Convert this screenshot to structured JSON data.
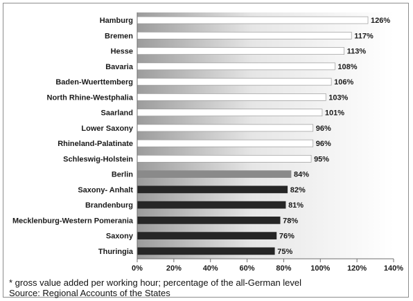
{
  "chart_data": {
    "type": "bar",
    "orientation": "horizontal",
    "categories": [
      "Hamburg",
      "Bremen",
      "Hesse",
      "Bavaria",
      "Baden-Wuerttemberg",
      "North Rhine-Westphalia",
      "Saarland",
      "Lower Saxony",
      "Rhineland-Palatinate",
      "Schleswig-Holstein",
      "Berlin",
      "Saxony- Anhalt",
      "Brandenburg",
      "Mecklenburg-Western Pomerania",
      "Saxony",
      "Thuringia"
    ],
    "values": [
      126,
      117,
      113,
      108,
      106,
      103,
      101,
      96,
      96,
      95,
      84,
      82,
      81,
      78,
      76,
      75
    ],
    "data_labels": [
      "126%",
      "117%",
      "113%",
      "108%",
      "106%",
      "103%",
      "101%",
      "96%",
      "96%",
      "95%",
      "84%",
      "82%",
      "81%",
      "78%",
      "76%",
      "75%"
    ],
    "groups": [
      "west",
      "west",
      "west",
      "west",
      "west",
      "west",
      "west",
      "west",
      "west",
      "west",
      "berlin",
      "east",
      "east",
      "east",
      "east",
      "east"
    ],
    "xlim": [
      0,
      140
    ],
    "xticks": [
      0,
      20,
      40,
      60,
      80,
      100,
      120,
      140
    ],
    "xtick_labels": [
      "0%",
      "20%",
      "40%",
      "60%",
      "80%",
      "100%",
      "120%",
      "140%"
    ],
    "grid": false,
    "legend": "none",
    "colors": {
      "west": "#ffffff",
      "berlin": "#8a8a8a",
      "east": "#262626",
      "bar_edge": "#9a9a9a"
    }
  },
  "footnote": "* gross value added per working hour; percentage of the all-German level",
  "source": "Source: Regional Accounts of the States"
}
